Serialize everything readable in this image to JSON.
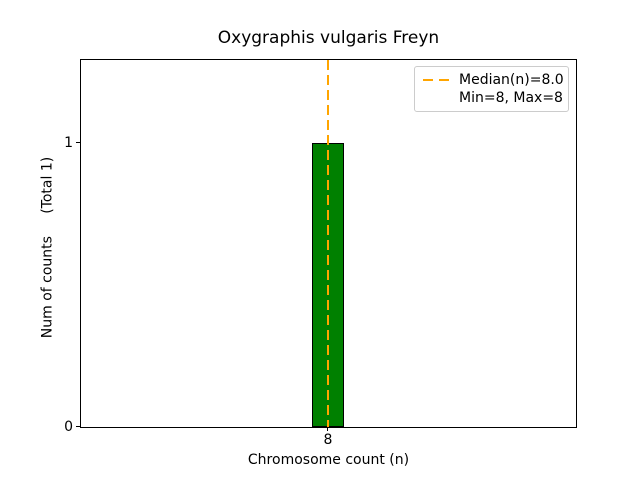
{
  "chart_data": {
    "type": "bar",
    "title": "Oxygraphis vulgaris Freyn",
    "xlabel": "Chromosome count (n)",
    "ylabel": "Num of counts     (Total 1)",
    "x": [
      8
    ],
    "values": [
      1
    ],
    "total_counts": 1,
    "xtick_labels": [
      "8"
    ],
    "ytick_labels": [
      "0",
      "1"
    ],
    "ylim": [
      0,
      1.3
    ],
    "grid": false,
    "median_line": {
      "x": 8.0,
      "style": "dashed",
      "color": "#FFA500",
      "linewidth": 2
    },
    "stats": {
      "median": 8.0,
      "min": 8,
      "max": 8
    },
    "colors": {
      "bar_fill": "#008000",
      "bar_edge": "#000000",
      "axis": "#000000",
      "legend_border": "#cccccc",
      "background": "#ffffff"
    },
    "legend": {
      "position": "upper right",
      "entries": [
        "Median(n)=8.0",
        "Min=8, Max=8"
      ]
    }
  }
}
